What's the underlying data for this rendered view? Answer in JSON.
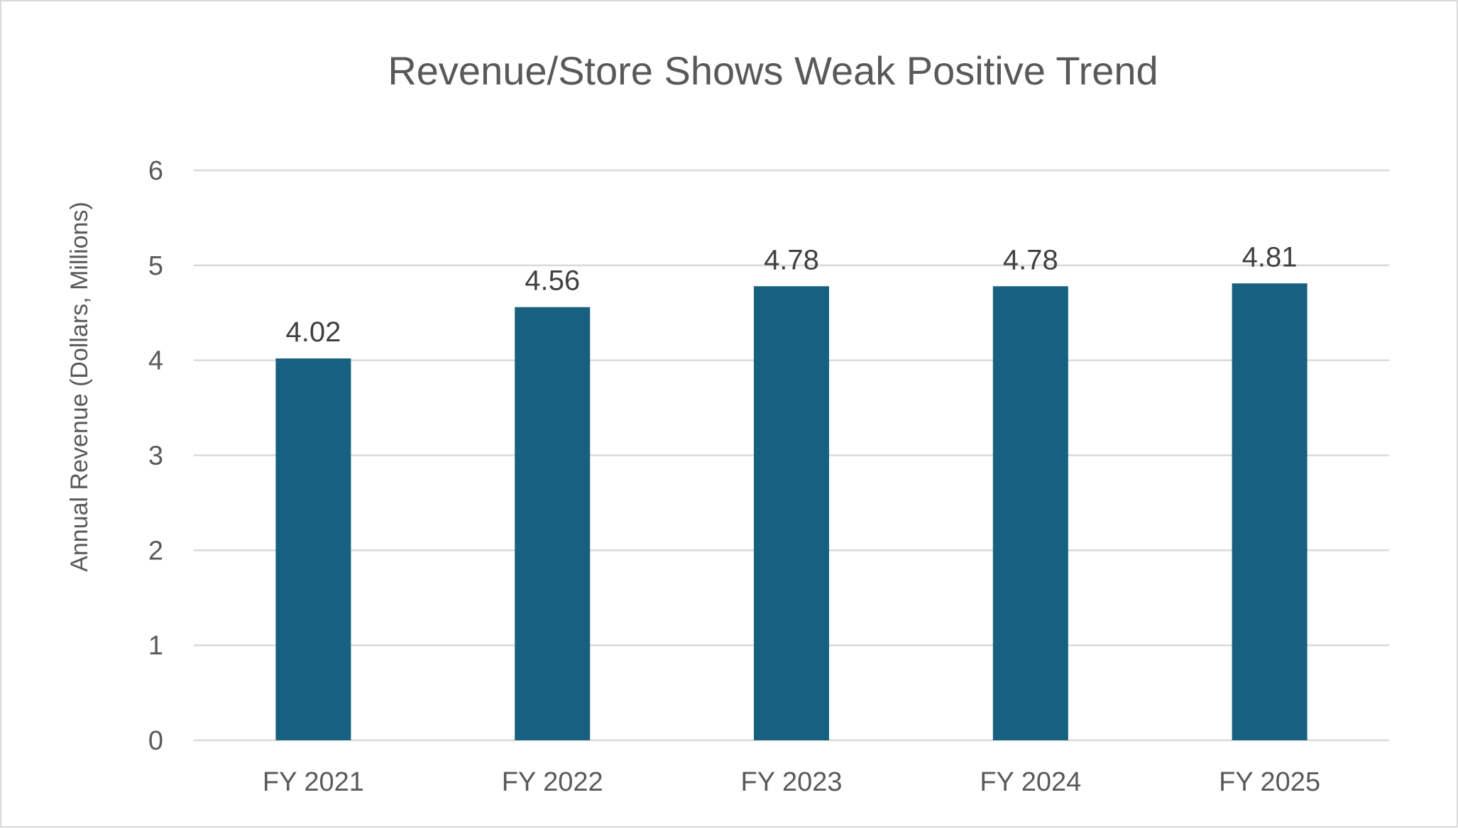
{
  "chart_data": {
    "type": "bar",
    "title": "Revenue/Store Shows Weak Positive Trend",
    "xlabel": "",
    "ylabel": "Annual Revenue (Dollars, Millions)",
    "categories": [
      "FY 2021",
      "FY 2022",
      "FY 2023",
      "FY 2024",
      "FY 2025"
    ],
    "values": [
      4.02,
      4.56,
      4.78,
      4.78,
      4.81
    ],
    "data_labels": [
      "4.02",
      "4.56",
      "4.78",
      "4.78",
      "4.81"
    ],
    "ylim": [
      0,
      6
    ],
    "yticks": [
      0,
      1,
      2,
      3,
      4,
      5,
      6
    ],
    "ytick_labels": [
      "0",
      "1",
      "2",
      "3",
      "4",
      "5",
      "6"
    ],
    "grid": true,
    "legend": "none",
    "bar_color": "#17607F"
  }
}
